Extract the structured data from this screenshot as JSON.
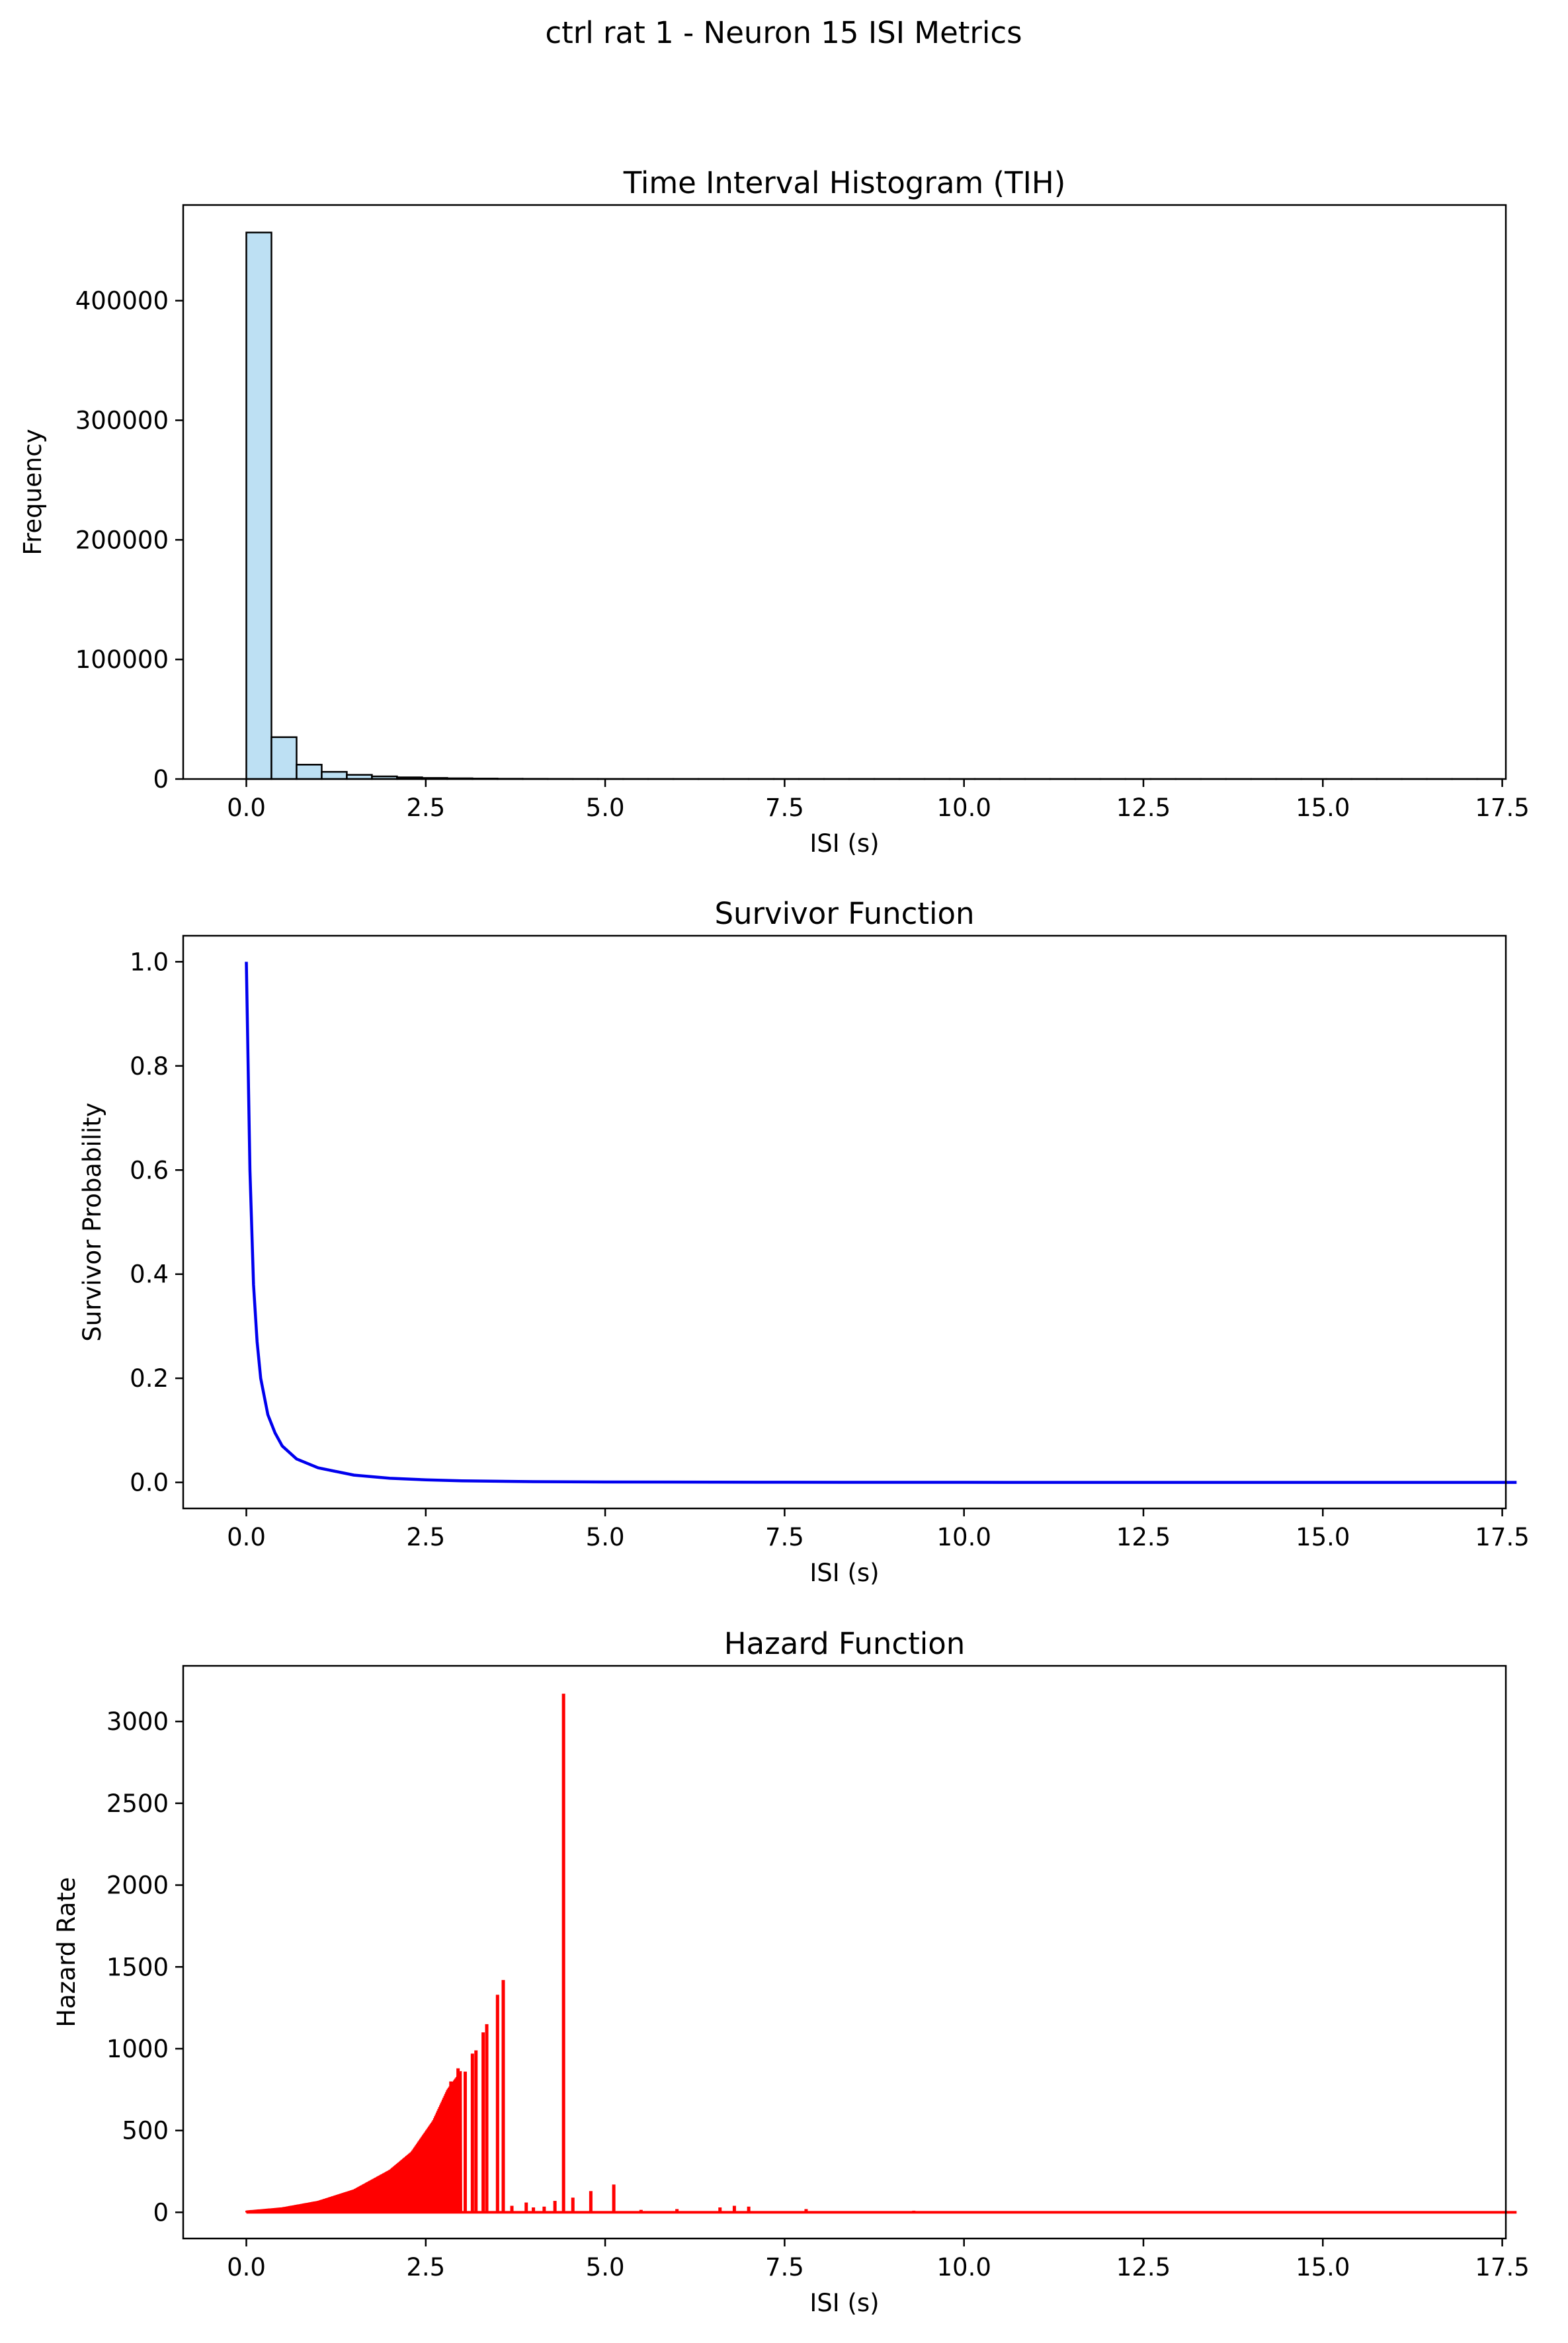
{
  "figure": {
    "suptitle": "ctrl rat 1 - Neuron 15 ISI Metrics"
  },
  "chart_data": [
    {
      "type": "bar",
      "title": "Time Interval Histogram (TIH)",
      "xlabel": "ISI (s)",
      "ylabel": "Frequency",
      "xlim": [
        -0.88,
        17.55
      ],
      "ylim": [
        0,
        480000
      ],
      "xticks": [
        0.0,
        2.5,
        5.0,
        7.5,
        10.0,
        12.5,
        15.0,
        17.5
      ],
      "xtick_labels": [
        "0.0",
        "2.5",
        "5.0",
        "7.5",
        "10.0",
        "12.5",
        "15.0",
        "17.5"
      ],
      "yticks": [
        0,
        100000,
        200000,
        300000,
        400000
      ],
      "ytick_labels": [
        "0",
        "100000",
        "200000",
        "300000",
        "400000"
      ],
      "bin_width": 0.35,
      "bin_start": 0.0,
      "values": [
        457000,
        35000,
        12000,
        6000,
        3500,
        2200,
        1400,
        900,
        600,
        400,
        250,
        180,
        130,
        90,
        70,
        55,
        45,
        38,
        32,
        28,
        24,
        20,
        17,
        14,
        12,
        10,
        9,
        8,
        7,
        6,
        5,
        5,
        4,
        4,
        3,
        3,
        3,
        2,
        2,
        2,
        2,
        2,
        1,
        1,
        1,
        1,
        1,
        1,
        1,
        1
      ],
      "fill_color": "#bde0f3",
      "edge_color": "#000000",
      "grid": false
    },
    {
      "type": "line",
      "title": "Survivor Function",
      "xlabel": "ISI (s)",
      "ylabel": "Survivor Probability",
      "xlim": [
        -0.88,
        17.55
      ],
      "ylim": [
        -0.05,
        1.05
      ],
      "xticks": [
        0.0,
        2.5,
        5.0,
        7.5,
        10.0,
        12.5,
        15.0,
        17.5
      ],
      "xtick_labels": [
        "0.0",
        "2.5",
        "5.0",
        "7.5",
        "10.0",
        "12.5",
        "15.0",
        "17.5"
      ],
      "yticks": [
        0.0,
        0.2,
        0.4,
        0.6,
        0.8,
        1.0
      ],
      "ytick_labels": [
        "0.0",
        "0.2",
        "0.4",
        "0.6",
        "0.8",
        "1.0"
      ],
      "x": [
        0.0,
        0.05,
        0.1,
        0.15,
        0.2,
        0.3,
        0.4,
        0.5,
        0.7,
        1.0,
        1.5,
        2.0,
        2.5,
        3.0,
        4.0,
        5.0,
        7.5,
        10.0,
        12.5,
        15.0,
        17.7
      ],
      "y": [
        1.0,
        0.6,
        0.38,
        0.27,
        0.2,
        0.13,
        0.095,
        0.07,
        0.045,
        0.028,
        0.014,
        0.008,
        0.005,
        0.003,
        0.0015,
        0.0008,
        0.0003,
        0.0001,
        5e-05,
        2e-05,
        0.0
      ],
      "line_color": "#0000ee",
      "grid": false
    },
    {
      "type": "line",
      "title": "Hazard Function",
      "xlabel": "ISI (s)",
      "ylabel": "Hazard Rate",
      "xlim": [
        -0.88,
        17.55
      ],
      "ylim": [
        -160,
        3340
      ],
      "xticks": [
        0.0,
        2.5,
        5.0,
        7.5,
        10.0,
        12.5,
        15.0,
        17.5
      ],
      "xtick_labels": [
        "0.0",
        "2.5",
        "5.0",
        "7.5",
        "10.0",
        "12.5",
        "15.0",
        "17.5"
      ],
      "yticks": [
        0,
        500,
        1000,
        1500,
        2000,
        2500,
        3000
      ],
      "ytick_labels": [
        "0",
        "500",
        "1000",
        "1500",
        "2000",
        "2500",
        "3000"
      ],
      "envelope": {
        "x": [
          0.0,
          0.5,
          1.0,
          1.5,
          2.0,
          2.3,
          2.6,
          2.8,
          3.0
        ],
        "y": [
          10,
          30,
          70,
          140,
          260,
          370,
          560,
          750,
          870
        ]
      },
      "spikes": {
        "x": [
          2.85,
          2.95,
          3.05,
          3.15,
          3.2,
          3.3,
          3.35,
          3.5,
          3.58,
          3.7,
          3.9,
          4.0,
          4.15,
          4.3,
          4.42,
          4.55,
          4.8,
          5.12,
          5.5,
          6.0,
          6.6,
          6.8,
          7.0,
          7.8,
          9.3,
          12.5
        ],
        "y": [
          800,
          880,
          860,
          970,
          990,
          1100,
          1150,
          1330,
          1420,
          40,
          60,
          30,
          35,
          70,
          3170,
          90,
          130,
          170,
          15,
          20,
          30,
          40,
          35,
          20,
          10,
          5
        ]
      },
      "baseline_end": 17.7,
      "line_color": "#ff0000",
      "grid": false
    }
  ]
}
